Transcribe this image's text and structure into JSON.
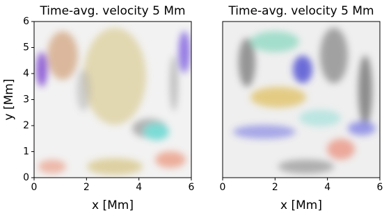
{
  "chart_data": [
    {
      "type": "image",
      "title": "Time-avg. velocity 5 Mm",
      "xlabel": "x [Mm]",
      "ylabel": "y [Mm]",
      "xlim": [
        0,
        6
      ],
      "ylim": [
        0,
        6
      ],
      "xticks": [
        0,
        2,
        4,
        6
      ],
      "yticks": [
        0,
        1,
        2,
        3,
        4,
        5,
        6
      ]
    },
    {
      "type": "image",
      "title": "Time-avg. velocity 5 Mm",
      "xlabel": "x [Mm]",
      "xlim": [
        0,
        6
      ],
      "ylim": [
        0,
        6
      ],
      "xticks": [
        0,
        2,
        4,
        6
      ]
    }
  ]
}
